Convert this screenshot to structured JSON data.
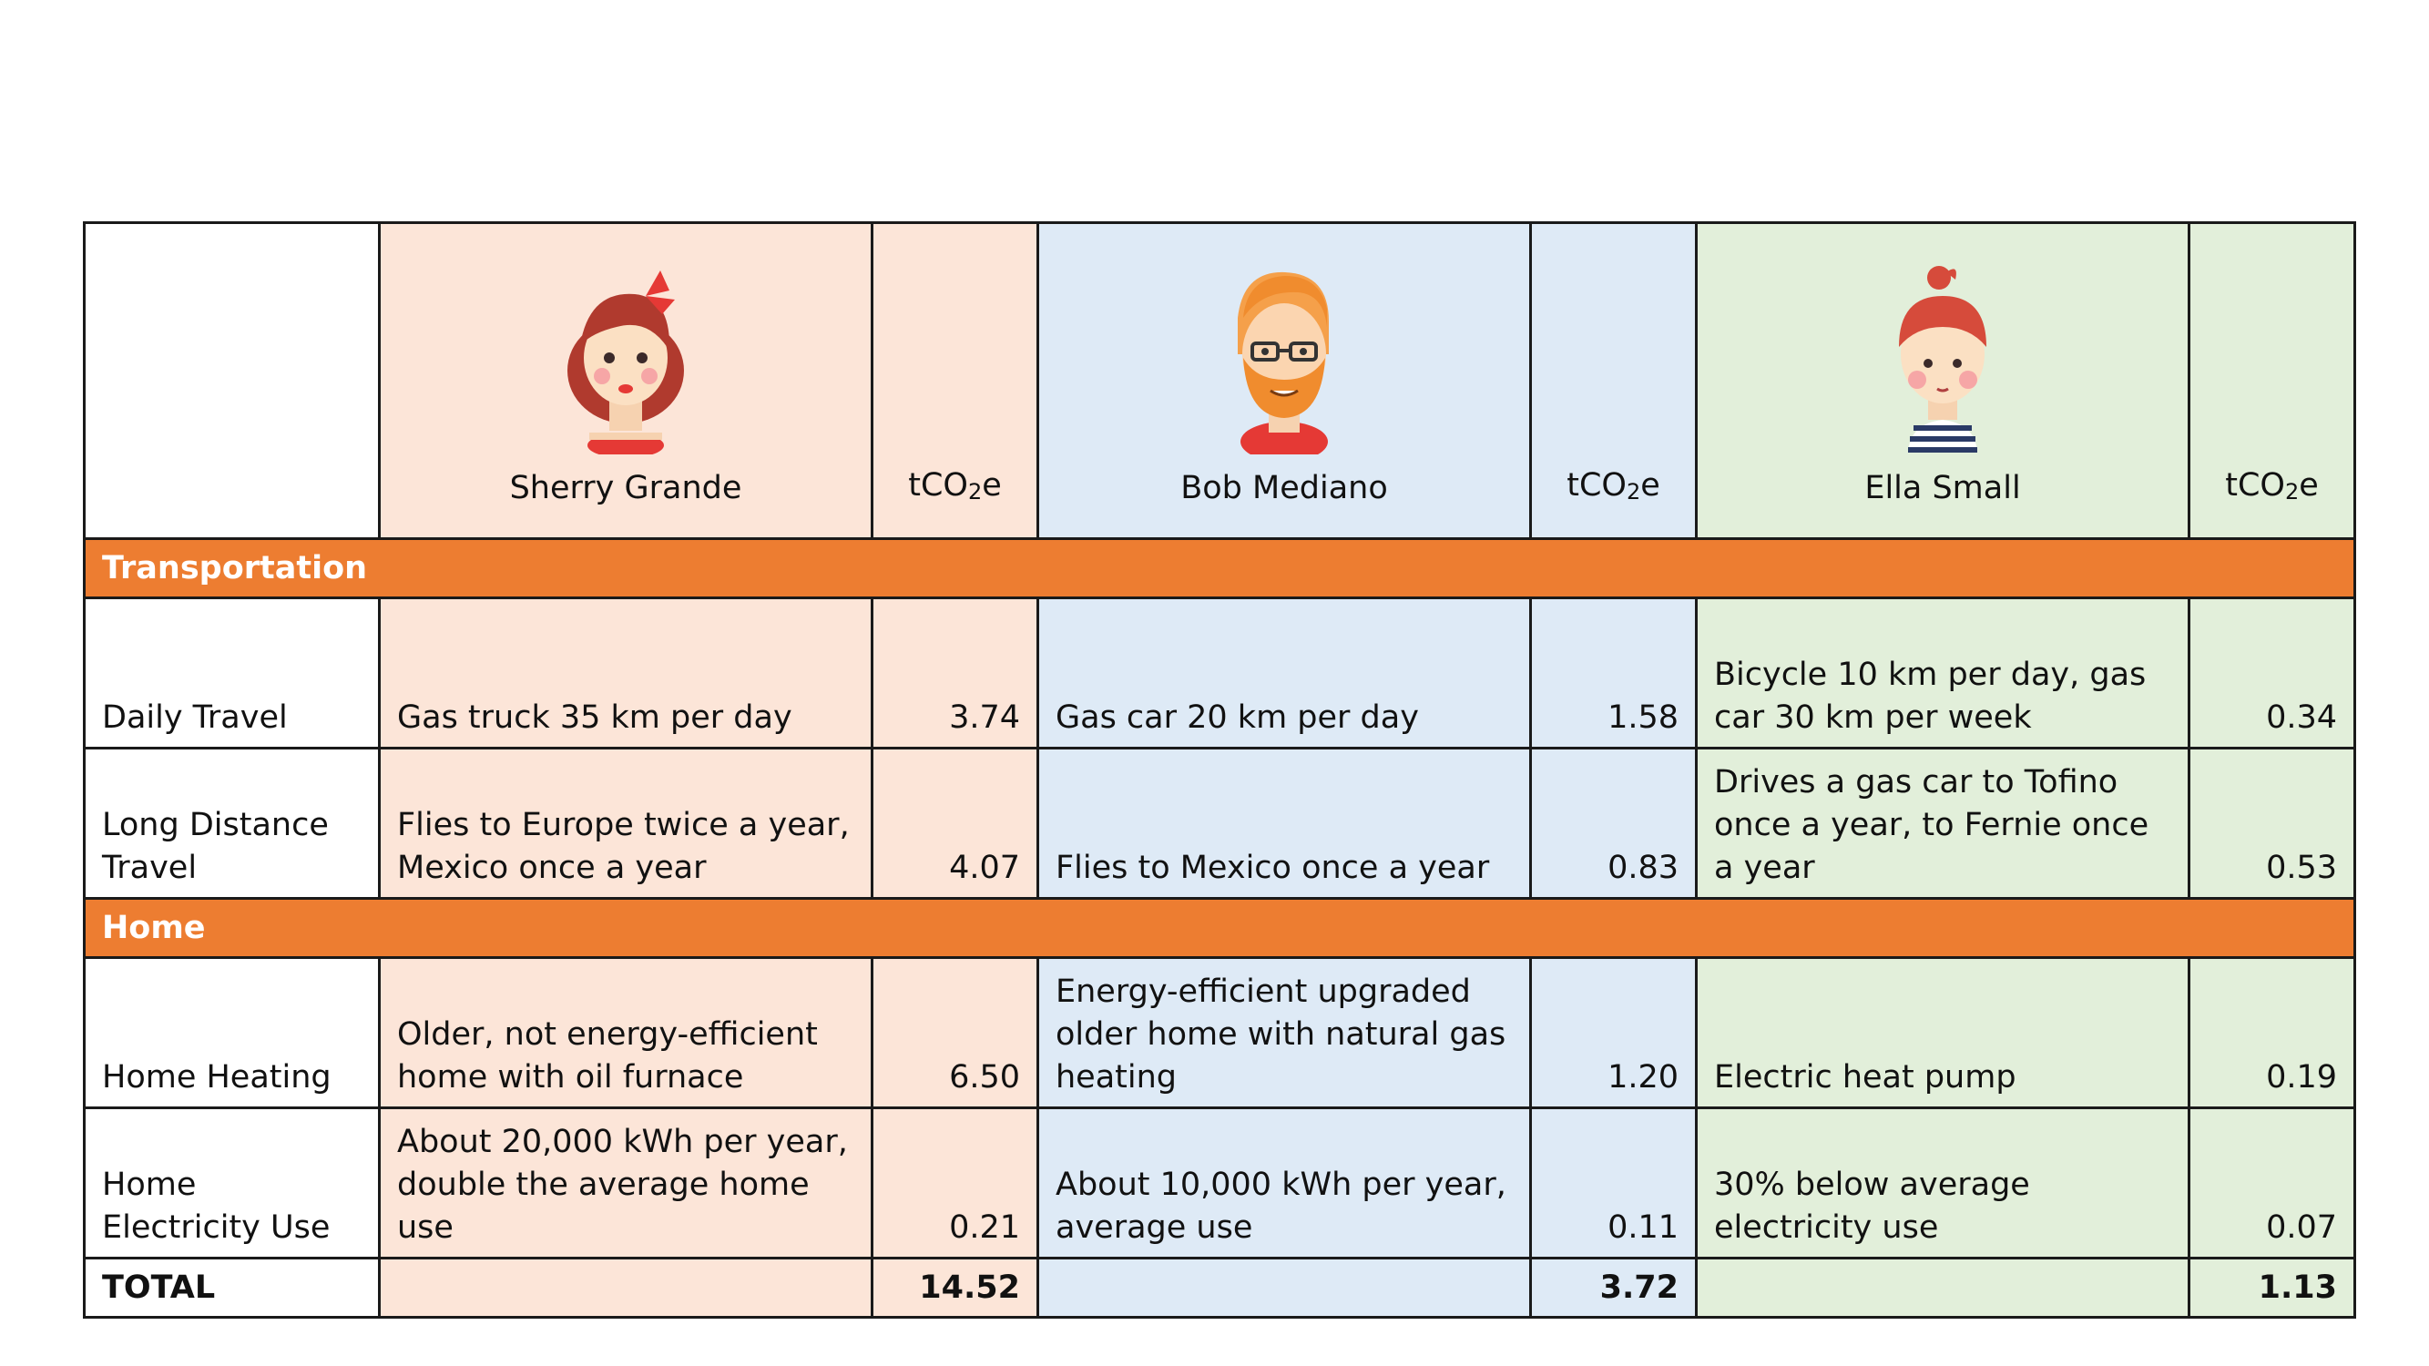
{
  "people": [
    {
      "name": "Sherry Grande",
      "avatar_icon": "woman-red-bow-avatar-icon"
    },
    {
      "name": "Bob Mediano",
      "avatar_icon": "bearded-man-glasses-avatar-icon"
    },
    {
      "name": "Ella Small",
      "avatar_icon": "girl-topknot-striped-shirt-avatar-icon"
    }
  ],
  "unit": {
    "prefix": "tCO",
    "sub": "2",
    "suffix": "e"
  },
  "sections": {
    "transportation": "Transportation",
    "home": "Home"
  },
  "rows": {
    "daily_travel": {
      "label": "Daily Travel",
      "sherry": "Gas truck 35 km per day",
      "sherry_val": "3.74",
      "bob": "Gas car 20 km per day",
      "bob_val": "1.58",
      "ella": "Bicycle 10 km per day, gas car 30 km per week",
      "ella_val": "0.34"
    },
    "long_distance": {
      "label": "Long Distance Travel",
      "sherry": "Flies to Europe twice a year, Mexico once a year",
      "sherry_val": "4.07",
      "bob": "Flies to Mexico once a year",
      "bob_val": "0.83",
      "ella": "Drives a gas car to Tofino once a year, to Fernie once a year",
      "ella_val": "0.53"
    },
    "home_heating": {
      "label": "Home Heating",
      "sherry": "Older, not energy-efficient home with oil furnace",
      "sherry_val": "6.50",
      "bob": "Energy-efficient upgraded older home with natural gas heating",
      "bob_val": "1.20",
      "ella": "Electric heat pump",
      "ella_val": "0.19"
    },
    "home_electricity": {
      "label": "Home Electricity Use",
      "sherry": "About 20,000 kWh per year, double the average home use",
      "sherry_val": "0.21",
      "bob": "About 10,000 kWh per year, average use",
      "bob_val": "0.11",
      "ella": "30% below average electricity use",
      "ella_val": "0.07"
    }
  },
  "total": {
    "label": "TOTAL",
    "sherry": "14.52",
    "bob": "3.72",
    "ella": "1.13"
  },
  "colors": {
    "sherry_bg": "#fce5d8",
    "bob_bg": "#deeaf6",
    "ella_bg": "#e2efda",
    "section_bg": "#ed7d31"
  }
}
